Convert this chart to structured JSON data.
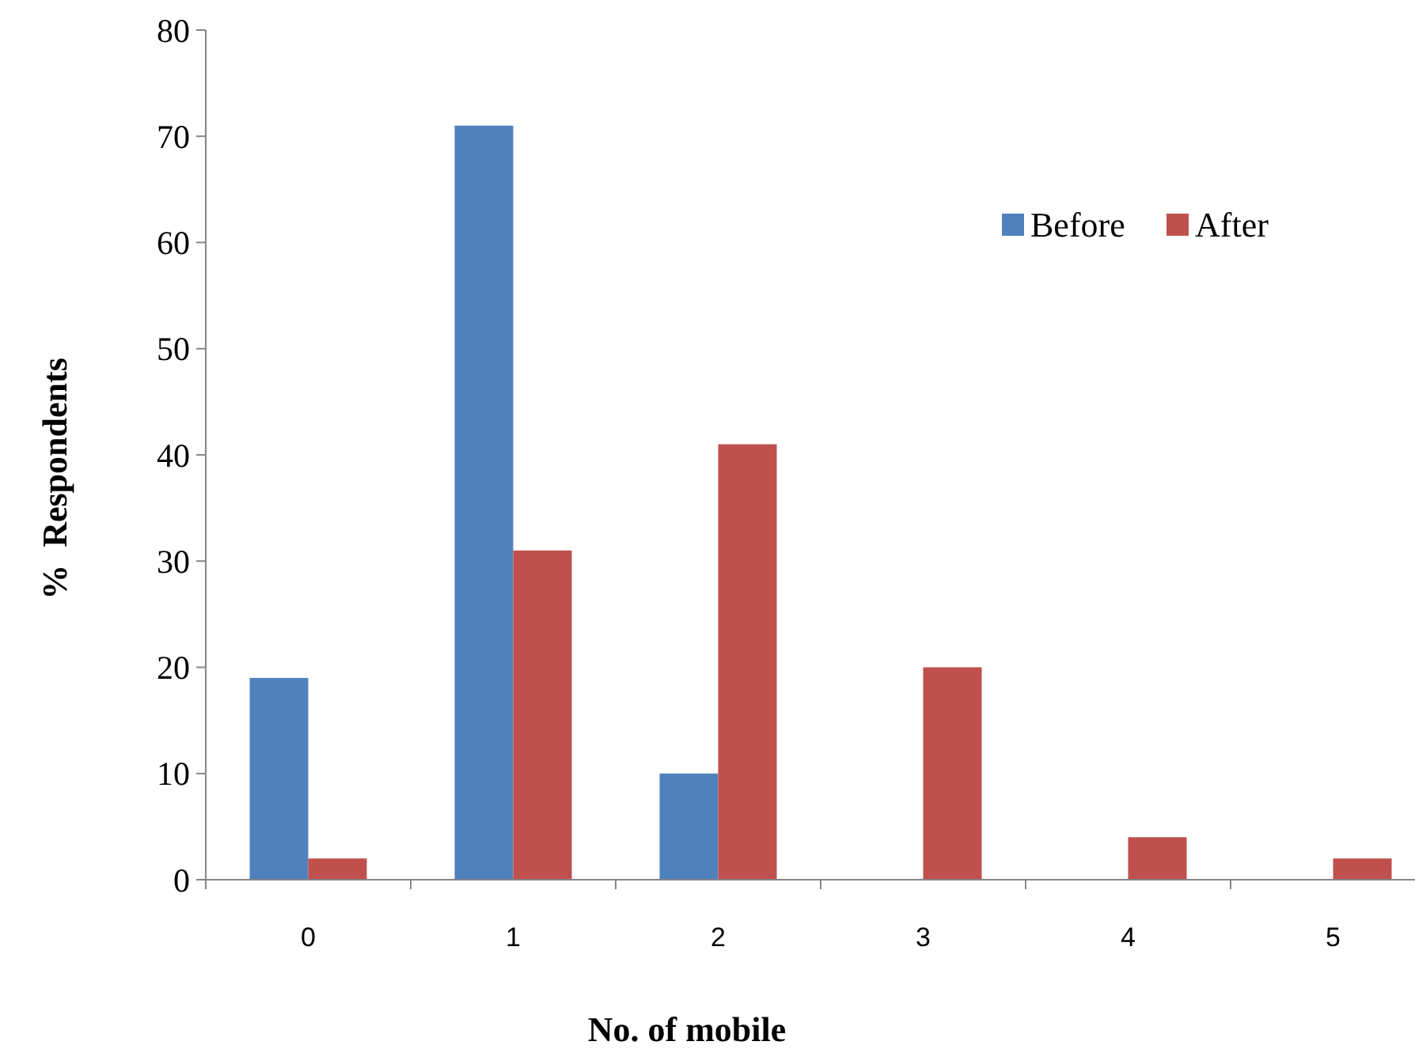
{
  "chart_data": {
    "type": "bar",
    "xlabel": "No. of mobile",
    "ylabel": "%  Respondents",
    "categories": [
      "0",
      "1",
      "2",
      "3",
      "4",
      "5"
    ],
    "series": [
      {
        "name": "Before",
        "color": "#4f81bd",
        "values": [
          19,
          71,
          10,
          0,
          0,
          0
        ]
      },
      {
        "name": "After",
        "color": "#c0504d",
        "values": [
          2,
          31,
          41,
          20,
          4,
          2
        ]
      }
    ],
    "ylim": [
      0,
      80
    ],
    "yticks": [
      0,
      10,
      20,
      30,
      40,
      50,
      60,
      70,
      80
    ],
    "grid": false,
    "legend": "top right"
  }
}
